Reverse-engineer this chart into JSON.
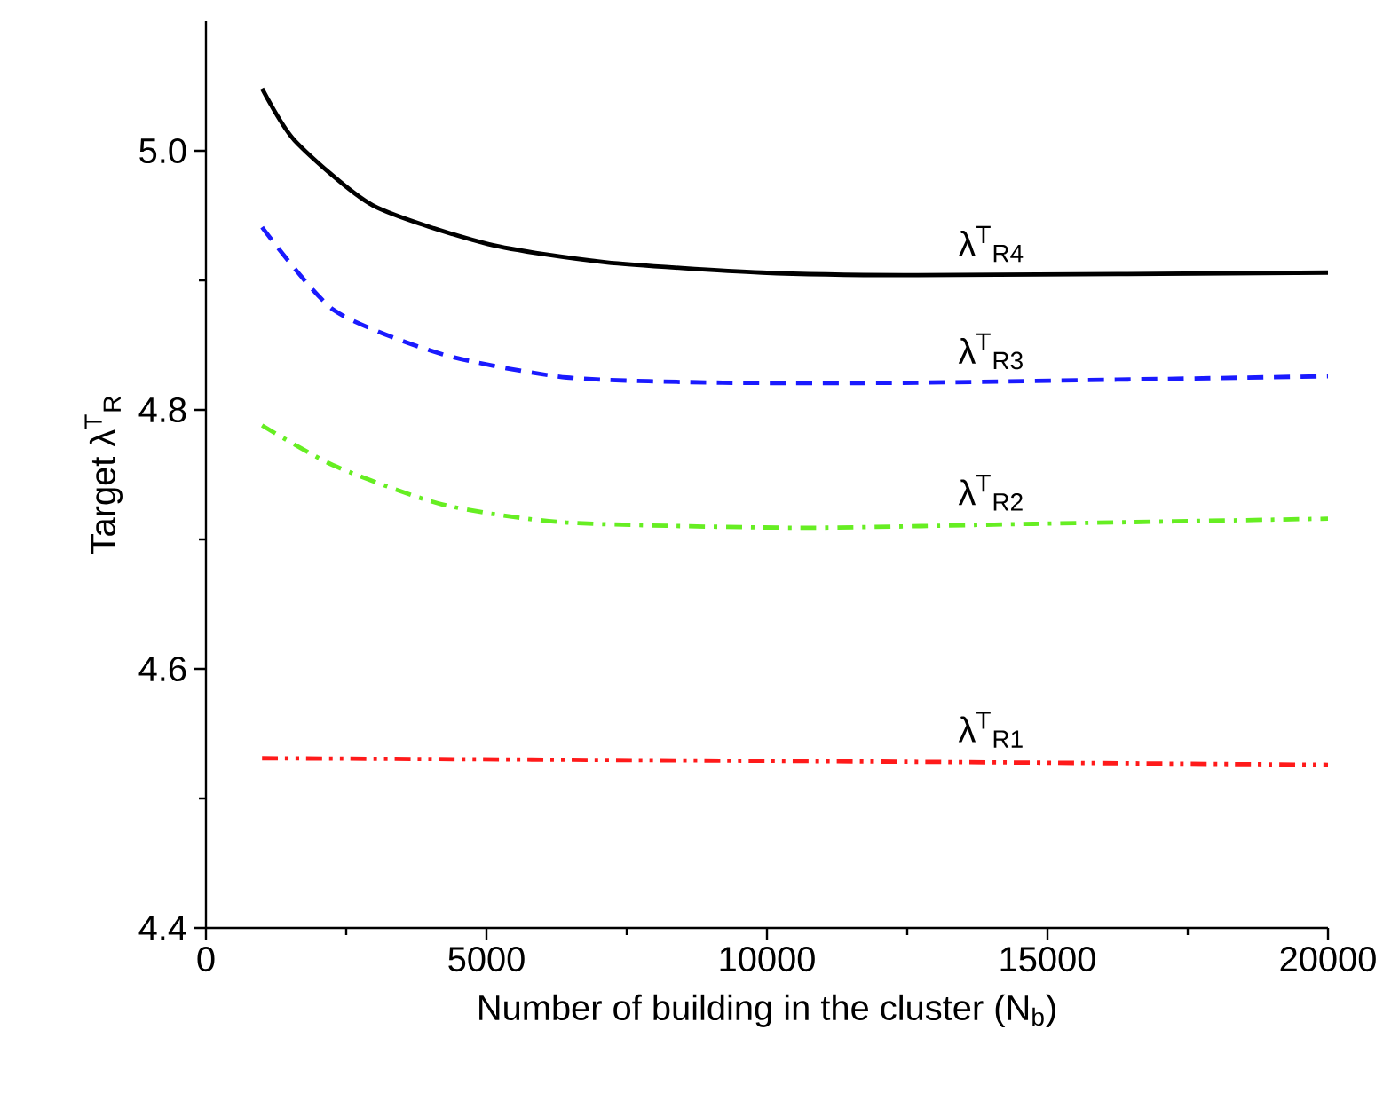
{
  "chart_data": {
    "type": "line",
    "xlabel": "Number of building in the cluster (N$_{b}$)",
    "ylabel": "Target λ$^{T}$$_{R}$",
    "xlim": [
      0,
      20000
    ],
    "ylim": [
      4.4,
      5.1
    ],
    "xticks": [
      0,
      5000,
      10000,
      15000,
      20000
    ],
    "yticks": [
      4.4,
      4.6,
      4.8,
      {
        "value": 5.0,
        "label": "5.0"
      }
    ],
    "grid": false,
    "legend": false,
    "marker": "none",
    "series": [
      {
        "name": "λ$^{T}$$_{R4}$",
        "color": "#000000",
        "line_style": "solid",
        "x": [
          1000,
          1580,
          2970,
          5030,
          7120,
          9910,
          12690,
          20000
        ],
        "values": [
          5.048,
          5.008,
          4.958,
          4.928,
          4.914,
          4.906,
          4.904,
          4.906
        ]
      },
      {
        "name": "λ$^{T}$$_{R3}$",
        "color": "#1a1aff",
        "line_style": "dashed",
        "x": [
          1000,
          2280,
          4210,
          6430,
          9210,
          12690,
          20000
        ],
        "values": [
          4.941,
          4.877,
          4.843,
          4.825,
          4.821,
          4.821,
          4.826
        ]
      },
      {
        "name": "λ$^{T}$$_{R2}$",
        "color": "#66ee22",
        "line_style": "dashdot",
        "x": [
          1000,
          2280,
          4210,
          6430,
          10600,
          14750,
          20000
        ],
        "values": [
          4.788,
          4.757,
          4.727,
          4.713,
          4.709,
          4.712,
          4.716
        ]
      },
      {
        "name": "λ$^{T}$$_{R1}$",
        "color": "#ff1a1a",
        "line_style": "dashdotdot",
        "x": [
          1000,
          10000,
          20000
        ],
        "values": [
          4.531,
          4.529,
          4.526
        ]
      }
    ]
  }
}
